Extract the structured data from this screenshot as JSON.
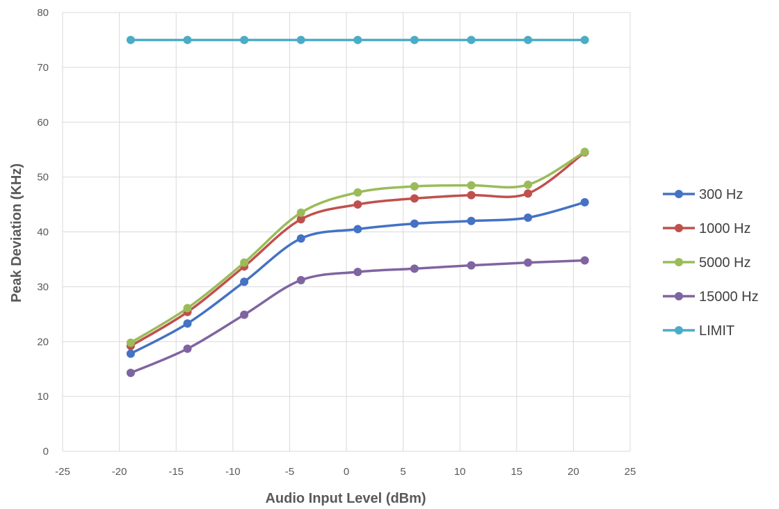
{
  "chart_data": {
    "type": "line",
    "xlabel": "Audio Input Level (dBm)",
    "ylabel": "Peak Deviation (KHz)",
    "xlim": [
      -25,
      25
    ],
    "ylim": [
      0,
      80
    ],
    "x_ticks": [
      -25,
      -20,
      -15,
      -10,
      -5,
      0,
      5,
      10,
      15,
      20,
      25
    ],
    "y_ticks": [
      0,
      10,
      20,
      30,
      40,
      50,
      60,
      70,
      80
    ],
    "grid": true,
    "smooth": true,
    "legend_position": "right",
    "x": [
      -19,
      -14,
      -9,
      -4,
      1,
      6,
      11,
      16,
      21
    ],
    "series": [
      {
        "name": "300 Hz",
        "color": "#4472C4",
        "values": [
          17.8,
          23.3,
          30.9,
          38.8,
          40.5,
          41.5,
          42.0,
          42.6,
          45.4
        ]
      },
      {
        "name": "1000 Hz",
        "color": "#C0504D",
        "values": [
          19.2,
          25.4,
          33.7,
          42.3,
          45.0,
          46.1,
          46.7,
          47.0,
          54.5
        ]
      },
      {
        "name": "5000 Hz",
        "color": "#9BBB59",
        "values": [
          19.8,
          26.1,
          34.4,
          43.5,
          47.2,
          48.3,
          48.5,
          48.6,
          54.6
        ]
      },
      {
        "name": "15000 Hz",
        "color": "#8064A2",
        "values": [
          14.3,
          18.7,
          24.9,
          31.2,
          32.7,
          33.3,
          33.9,
          34.4,
          34.8
        ]
      },
      {
        "name": "LIMIT",
        "color": "#4BACC6",
        "values": [
          75,
          75,
          75,
          75,
          75,
          75,
          75,
          75,
          75
        ]
      }
    ]
  }
}
